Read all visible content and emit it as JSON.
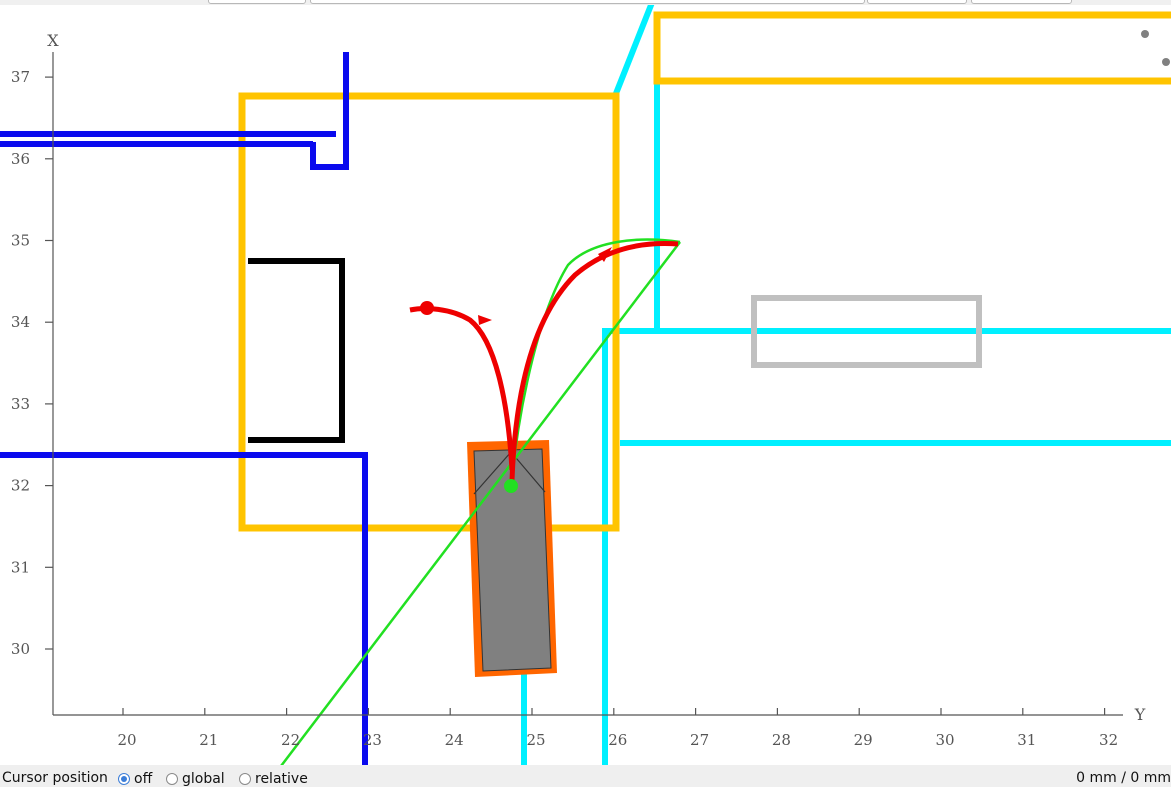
{
  "status_bar": {
    "cursor_label": "Cursor position",
    "modes": [
      {
        "label": "off",
        "checked": true
      },
      {
        "label": "global",
        "checked": false
      },
      {
        "label": "relative",
        "checked": false
      }
    ],
    "readout": "0 mm / 0 mm"
  },
  "chart_data": {
    "type": "map-plot",
    "xlabel": "X",
    "ylabel": "Y",
    "x_axis_ticks": [
      30,
      31,
      32,
      33,
      34,
      35,
      36,
      37
    ],
    "y_axis_ticks": [
      20,
      21,
      22,
      23,
      24,
      25,
      26,
      27,
      28,
      29,
      30,
      31,
      32
    ],
    "x_range": [
      29.2,
      37.8
    ],
    "y_range": [
      19.1,
      32.6
    ],
    "grid": false,
    "colors": {
      "blue_walls": "#0a0aee",
      "cyan_walls": "#00f0ff",
      "yellow_zones": "#ffc400",
      "black_box": "#000000",
      "gray_box": "#c0c0c0",
      "robot_outline": "#ff6600",
      "robot_body": "#808080",
      "green_path": "#22e022",
      "red_path": "#ee0000"
    }
  }
}
